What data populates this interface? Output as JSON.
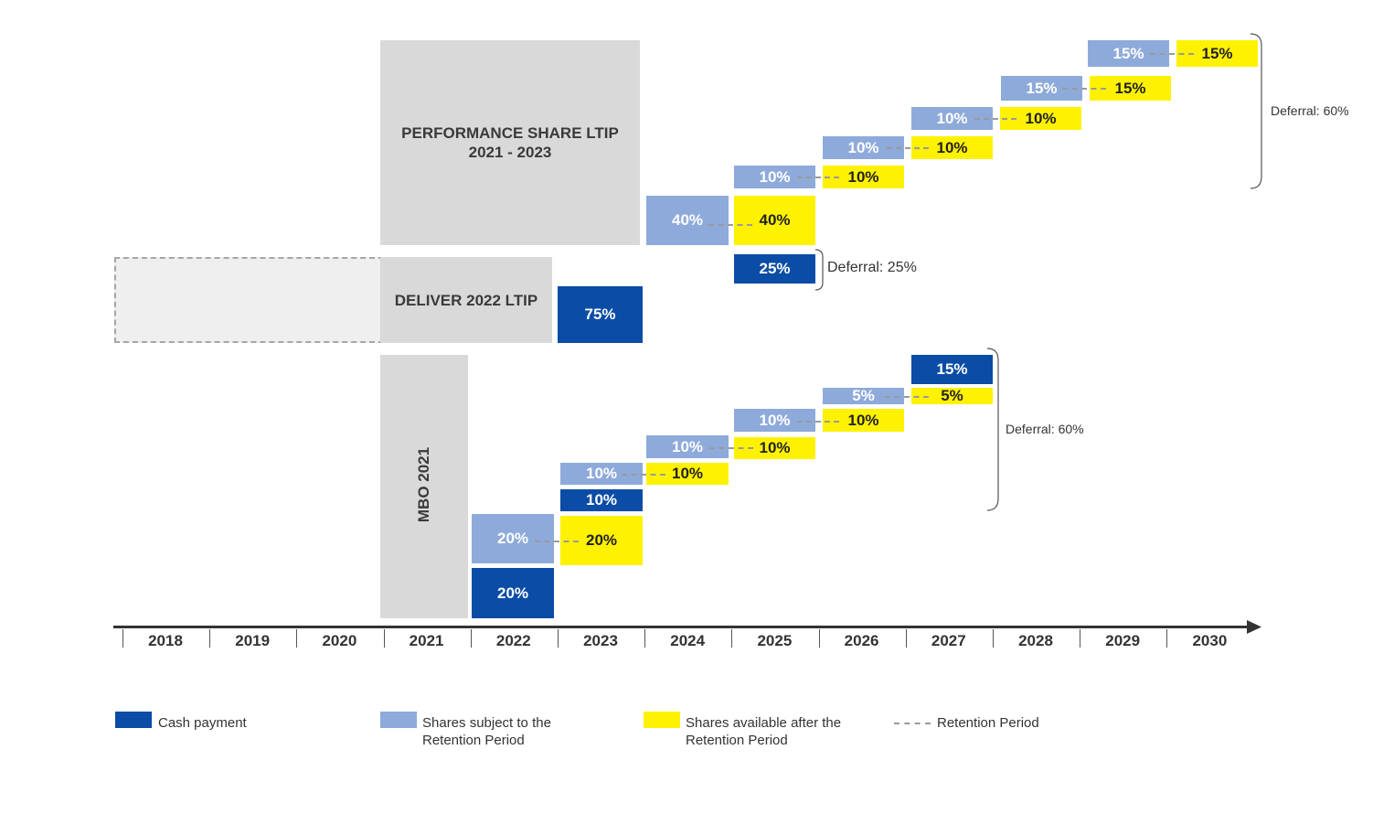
{
  "plans": {
    "performance_share": "PERFORMANCE SHARE LTIP\n2021 - 2023",
    "deliver_2022": "DELIVER 2022 LTIP",
    "mbo_2021": "MBO 2021"
  },
  "years": [
    "2018",
    "2019",
    "2020",
    "2021",
    "2022",
    "2023",
    "2024",
    "2025",
    "2026",
    "2027",
    "2028",
    "2029",
    "2030"
  ],
  "performance_share_ltip": {
    "shares_subject": [
      "40%",
      "10%",
      "10%",
      "10%",
      "15%",
      "15%"
    ],
    "shares_available": [
      "40%",
      "10%",
      "10%",
      "10%",
      "15%",
      "15%"
    ],
    "cash": "25%",
    "deferral_cash": "Deferral: 25%",
    "deferral_shares": "Deferral: 60%"
  },
  "deliver_2022_ltip": {
    "cash": "75%"
  },
  "mbo_2021": {
    "cash_2022": "20%",
    "shares_subject_2022": "20%",
    "shares_available_2023": "20%",
    "cash_2023": "10%",
    "shares_subject": [
      "10%",
      "10%",
      "10%",
      "5%"
    ],
    "shares_available": [
      "10%",
      "10%",
      "10%",
      "5%"
    ],
    "cash_2027": "15%",
    "deferral": "Deferral: 60%"
  },
  "legend": {
    "cash": "Cash payment",
    "shares_subject": "Shares subject to the\nRetention Period",
    "shares_available": "Shares available after the\nRetention Period",
    "retention": "Retention Period"
  },
  "colors": {
    "cash": "#0a4ca6",
    "shares_subject": "#8eaadb",
    "shares_available": "#fff200",
    "plan_box": "#d9d9d9",
    "retention": "#9a9a9a"
  }
}
